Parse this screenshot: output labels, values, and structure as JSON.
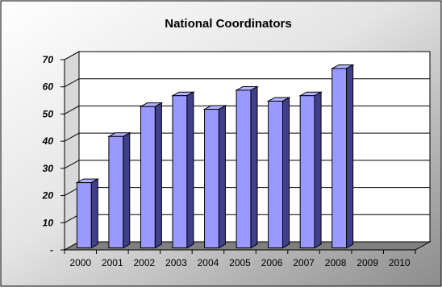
{
  "chart_data": {
    "type": "bar",
    "title": "National Coordinators",
    "categories": [
      "2000",
      "2001",
      "2002",
      "2003",
      "2004",
      "2005",
      "2006",
      "2007",
      "2008",
      "2009",
      "2010"
    ],
    "values": [
      24,
      41,
      52,
      56,
      51,
      58,
      54,
      56,
      66,
      null,
      null
    ],
    "ylim": [
      0,
      70
    ],
    "yticks": [
      "-",
      "10",
      "20",
      "30",
      "40",
      "50",
      "60",
      "70"
    ],
    "xlabel": "",
    "ylabel": "",
    "grid": true,
    "legend": "none",
    "colors": {
      "bar_front": "#9999ff",
      "bar_side": "#3f3f8c",
      "bar_top": "#b3b3ff",
      "bar_outline": "#000000",
      "plot_back": "#ffffff",
      "floor": "#7f7f7f"
    }
  }
}
